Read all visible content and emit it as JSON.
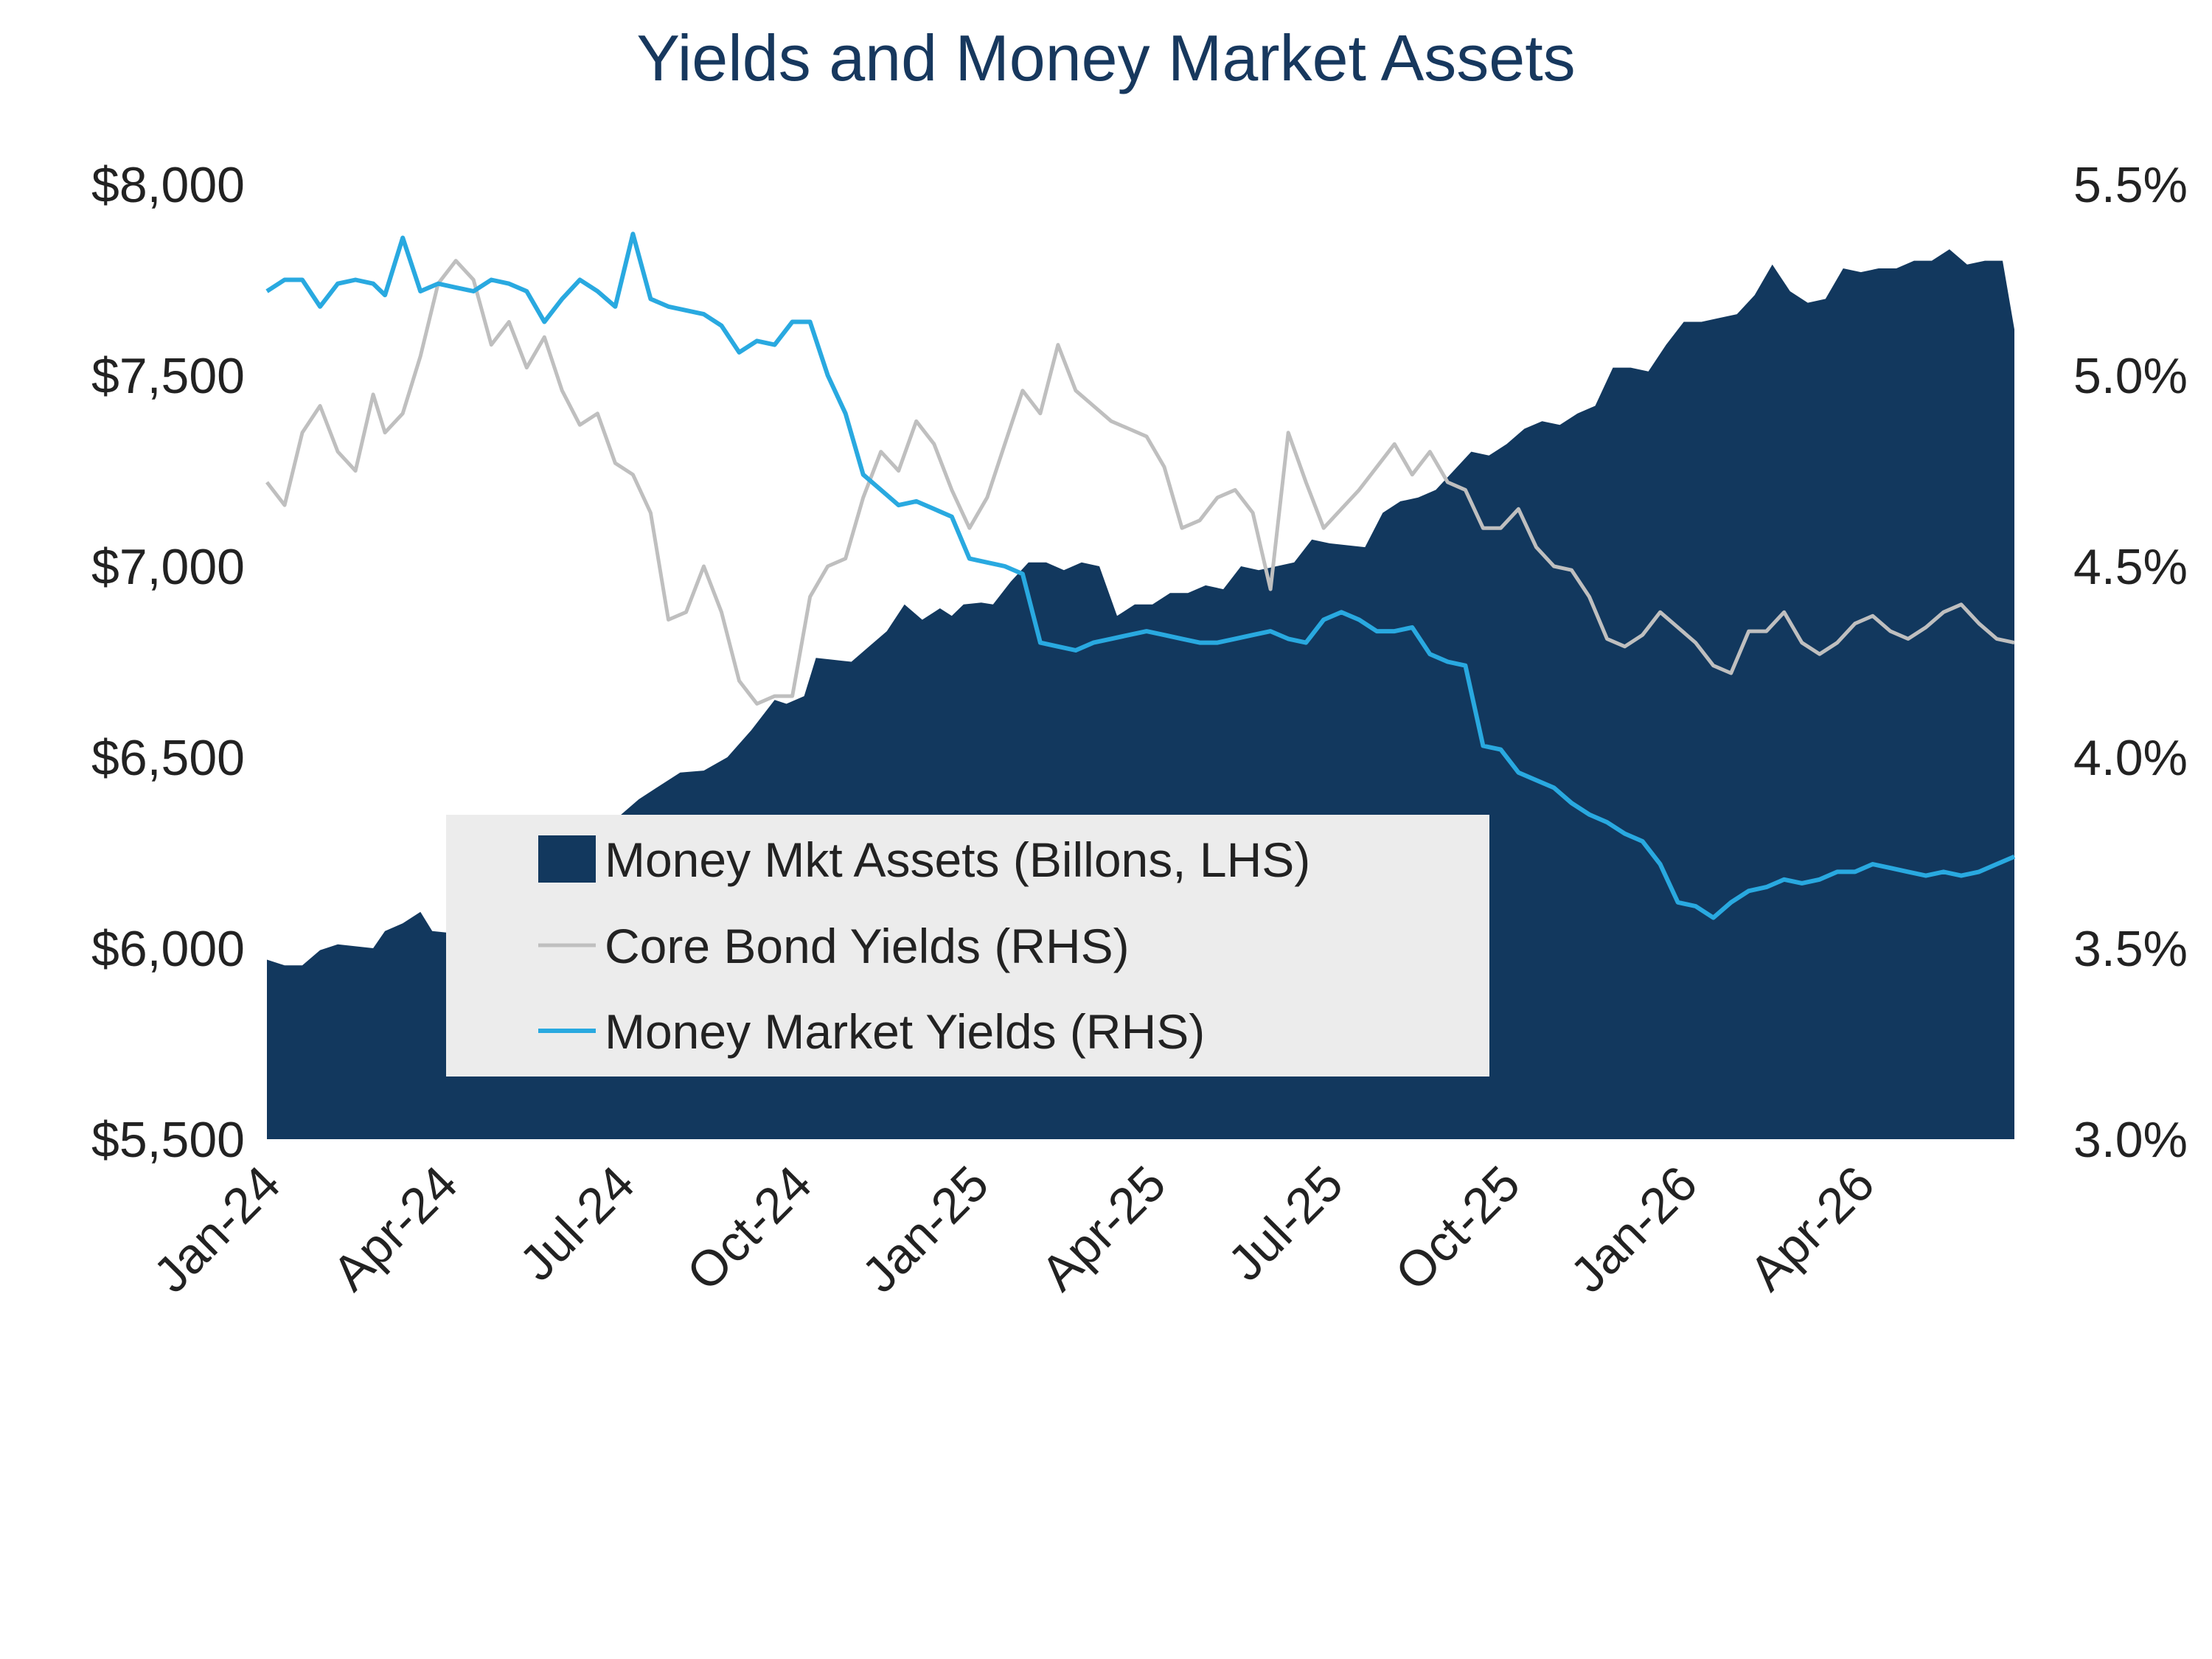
{
  "chart_data": {
    "type": "area",
    "title": "Yields and Money Market Assets",
    "x_tick_labels": [
      "Jan-24",
      "Apr-24",
      "Jul-24",
      "Oct-24",
      "Jan-25",
      "Apr-25",
      "Jul-25",
      "Oct-25",
      "Jan-26",
      "Apr-26"
    ],
    "x_range_months": [
      0,
      29.6
    ],
    "y_left": {
      "ticks": [
        "$5,500",
        "$6,000",
        "$6,500",
        "$7,000",
        "$7,500",
        "$8,000"
      ],
      "range": [
        5500,
        8000
      ]
    },
    "y_right": {
      "ticks": [
        "3.0%",
        "3.5%",
        "4.0%",
        "4.5%",
        "5.0%",
        "5.5%"
      ],
      "range": [
        3.0,
        5.5
      ]
    },
    "grid": false,
    "legend_position": "center-left",
    "series": [
      {
        "name": "Money Mkt Assets (Billons, LHS)",
        "kind": "area",
        "axis": "left",
        "color": "#12385e",
        "x": [
          0,
          0.3,
          0.6,
          0.9,
          1.2,
          1.5,
          1.8,
          2,
          2.3,
          2.6,
          2.8,
          3.1,
          3.4,
          3.6,
          3.9,
          4.2,
          4.5,
          4.8,
          5.1,
          5.4,
          5.7,
          6,
          6.3,
          6.6,
          7,
          7.4,
          7.8,
          8.2,
          8.6,
          8.8,
          9.1,
          9.3,
          9.6,
          9.9,
          10.2,
          10.5,
          10.8,
          11.1,
          11.4,
          11.6,
          11.8,
          12.1,
          12.3,
          12.6,
          12.9,
          13.2,
          13.5,
          13.8,
          14.1,
          14.4,
          14.7,
          15,
          15.3,
          15.6,
          15.9,
          16.2,
          16.5,
          16.8,
          17.1,
          17.4,
          17.7,
          18,
          18.3,
          18.6,
          18.9,
          19.2,
          19.5,
          19.8,
          20.1,
          20.4,
          20.7,
          21,
          21.3,
          21.6,
          21.9,
          22.2,
          22.5,
          22.8,
          23.1,
          23.4,
          23.7,
          24,
          24.3,
          24.6,
          24.9,
          25.2,
          25.5,
          25.8,
          26.1,
          26.4,
          26.7,
          27,
          27.3,
          27.6,
          27.9,
          28.2,
          28.5,
          28.8,
          29.1,
          29.4,
          29.6
        ],
        "values": [
          5970,
          5955,
          5955,
          5995,
          6010,
          6005,
          6000,
          6045,
          6065,
          6095,
          6045,
          6040,
          6100,
          6075,
          6005,
          6050,
          6100,
          6150,
          6200,
          6250,
          6300,
          6350,
          6390,
          6420,
          6460,
          6465,
          6500,
          6570,
          6650,
          6640,
          6660,
          6760,
          6755,
          6750,
          6790,
          6830,
          6900,
          6860,
          6890,
          6870,
          6900,
          6905,
          6900,
          6960,
          7010,
          7010,
          6990,
          7010,
          7000,
          6870,
          6900,
          6900,
          6930,
          6930,
          6950,
          6940,
          7000,
          6990,
          7000,
          7010,
          7070,
          7060,
          7055,
          7050,
          7140,
          7170,
          7180,
          7200,
          7250,
          7300,
          7290,
          7320,
          7360,
          7380,
          7370,
          7400,
          7420,
          7520,
          7520,
          7510,
          7580,
          7640,
          7640,
          7650,
          7660,
          7710,
          7790,
          7720,
          7690,
          7700,
          7780,
          7770,
          7780,
          7780,
          7800,
          7800,
          7830,
          7790,
          7800,
          7800,
          7620
        ]
      },
      {
        "name": "Core Bond Yields (RHS)",
        "kind": "line",
        "axis": "right",
        "color": "#bfbfbf",
        "x": [
          0,
          0.3,
          0.6,
          0.9,
          1.2,
          1.5,
          1.8,
          2,
          2.3,
          2.6,
          2.9,
          3.2,
          3.5,
          3.8,
          4.1,
          4.4,
          4.7,
          5,
          5.3,
          5.6,
          5.9,
          6.2,
          6.5,
          6.8,
          7.1,
          7.4,
          7.7,
          8,
          8.3,
          8.6,
          8.9,
          9.2,
          9.5,
          9.8,
          10.1,
          10.4,
          10.7,
          11,
          11.3,
          11.6,
          11.9,
          12.2,
          12.5,
          12.8,
          13.1,
          13.4,
          13.7,
          14,
          14.3,
          14.6,
          14.9,
          15.2,
          15.5,
          15.8,
          16.1,
          16.4,
          16.7,
          17,
          17.3,
          17.6,
          17.9,
          18.2,
          18.5,
          18.8,
          19.1,
          19.4,
          19.7,
          20,
          20.3,
          20.6,
          20.9,
          21.2,
          21.5,
          21.8,
          22.1,
          22.4,
          22.7,
          23,
          23.3,
          23.6,
          23.9,
          24.2,
          24.5,
          24.8,
          25.1,
          25.4,
          25.7,
          26,
          26.3,
          26.6,
          26.9,
          27.2,
          27.5,
          27.8,
          28.1,
          28.4,
          28.7,
          29,
          29.3,
          29.6
        ],
        "values": [
          4.72,
          4.66,
          4.85,
          4.92,
          4.8,
          4.75,
          4.95,
          4.85,
          4.9,
          5.05,
          5.24,
          5.3,
          5.25,
          5.08,
          5.14,
          5.02,
          5.1,
          4.96,
          4.87,
          4.9,
          4.77,
          4.74,
          4.64,
          4.36,
          4.38,
          4.5,
          4.38,
          4.2,
          4.14,
          4.16,
          4.16,
          4.42,
          4.5,
          4.52,
          4.68,
          4.8,
          4.75,
          4.88,
          4.82,
          4.7,
          4.6,
          4.68,
          4.82,
          4.96,
          4.9,
          5.08,
          4.96,
          4.92,
          4.88,
          4.86,
          4.84,
          4.76,
          4.6,
          4.62,
          4.68,
          4.7,
          4.64,
          4.44,
          4.85,
          4.72,
          4.6,
          4.65,
          4.7,
          4.76,
          4.82,
          4.74,
          4.8,
          4.72,
          4.7,
          4.6,
          4.6,
          4.65,
          4.55,
          4.5,
          4.49,
          4.42,
          4.31,
          4.29,
          4.32,
          4.38,
          4.34,
          4.3,
          4.24,
          4.22,
          4.33,
          4.33,
          4.38,
          4.3,
          4.27,
          4.3,
          4.35,
          4.37,
          4.33,
          4.31,
          4.34,
          4.38,
          4.4,
          4.35,
          4.31,
          4.3
        ]
      },
      {
        "name": "Money Market Yields (RHS)",
        "kind": "line",
        "axis": "right",
        "color": "#29a9e0",
        "x": [
          0,
          0.3,
          0.6,
          0.9,
          1.2,
          1.5,
          1.8,
          2,
          2.3,
          2.6,
          2.9,
          3.2,
          3.5,
          3.8,
          4.1,
          4.4,
          4.7,
          5,
          5.3,
          5.6,
          5.9,
          6.2,
          6.5,
          6.8,
          7.1,
          7.4,
          7.7,
          8,
          8.3,
          8.6,
          8.9,
          9.2,
          9.5,
          9.8,
          10.1,
          10.4,
          10.7,
          11,
          11.3,
          11.6,
          11.9,
          12.2,
          12.5,
          12.8,
          13.1,
          13.4,
          13.7,
          14,
          14.3,
          14.6,
          14.9,
          15.2,
          15.5,
          15.8,
          16.1,
          16.4,
          16.7,
          17,
          17.3,
          17.6,
          17.9,
          18.2,
          18.5,
          18.8,
          19.1,
          19.4,
          19.7,
          20,
          20.3,
          20.6,
          20.9,
          21.2,
          21.5,
          21.8,
          22.1,
          22.4,
          22.7,
          23,
          23.3,
          23.6,
          23.9,
          24.2,
          24.5,
          24.8,
          25.1,
          25.4,
          25.7,
          26,
          26.3,
          26.6,
          26.9,
          27.2,
          27.5,
          27.8,
          28.1,
          28.4,
          28.7,
          29,
          29.3,
          29.6
        ],
        "values": [
          5.22,
          5.25,
          5.25,
          5.18,
          5.24,
          5.25,
          5.24,
          5.21,
          5.36,
          5.22,
          5.24,
          5.23,
          5.22,
          5.25,
          5.24,
          5.22,
          5.14,
          5.2,
          5.25,
          5.22,
          5.18,
          5.37,
          5.2,
          5.18,
          5.17,
          5.16,
          5.13,
          5.06,
          5.09,
          5.08,
          5.14,
          5.14,
          5.0,
          4.9,
          4.74,
          4.7,
          4.66,
          4.67,
          4.65,
          4.63,
          4.52,
          4.51,
          4.5,
          4.48,
          4.3,
          4.29,
          4.28,
          4.3,
          4.31,
          4.32,
          4.33,
          4.32,
          4.31,
          4.3,
          4.3,
          4.31,
          4.32,
          4.33,
          4.31,
          4.3,
          4.36,
          4.38,
          4.36,
          4.33,
          4.33,
          4.34,
          4.27,
          4.25,
          4.24,
          4.03,
          4.02,
          3.96,
          3.94,
          3.92,
          3.88,
          3.85,
          3.83,
          3.8,
          3.78,
          3.72,
          3.62,
          3.61,
          3.58,
          3.62,
          3.65,
          3.66,
          3.68,
          3.67,
          3.68,
          3.7,
          3.7,
          3.72,
          3.71,
          3.7,
          3.69,
          3.7,
          3.69,
          3.7,
          3.72,
          3.74
        ]
      }
    ]
  }
}
